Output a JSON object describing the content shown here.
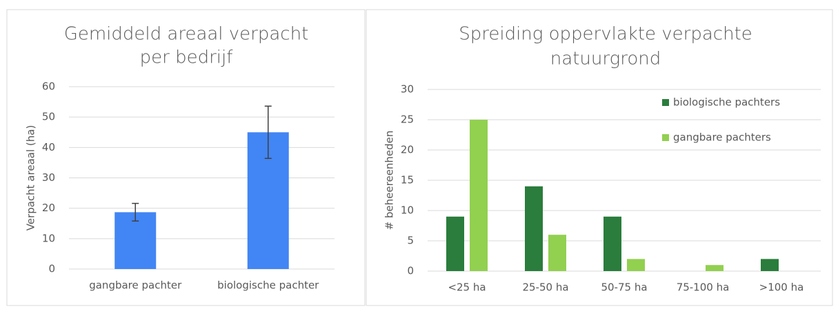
{
  "chart_data": [
    {
      "type": "bar",
      "title": [
        "Gemiddeld areaal verpacht",
        "per bedrijf"
      ],
      "y_label": "Verpacht areaal (ha)",
      "categories": [
        "gangbare pachter",
        "biologische pachter"
      ],
      "values": [
        18.7,
        45
      ],
      "errors": [
        2.9,
        8.6
      ],
      "color": "#4285f4",
      "ylim": [
        0,
        60
      ],
      "yticks": [
        0,
        10,
        20,
        30,
        40,
        50,
        60
      ],
      "grid": true
    },
    {
      "type": "grouped_bar",
      "title": [
        "Spreiding oppervlakte verpachte",
        "natuurgrond"
      ],
      "y_label": "# beheereenheden",
      "categories": [
        "<25 ha",
        "25-50 ha",
        "50-75 ha",
        "75-100 ha",
        ">100 ha"
      ],
      "series": [
        {
          "name": "biologische pachters",
          "color": "#2a7d3c",
          "values": [
            9,
            14,
            9,
            0,
            2
          ]
        },
        {
          "name": "gangbare pachters",
          "color": "#92d050",
          "values": [
            25,
            6,
            2,
            1,
            0
          ]
        }
      ],
      "ylim": [
        0,
        30
      ],
      "yticks": [
        0,
        5,
        10,
        15,
        20,
        25,
        30
      ],
      "grid": true,
      "legend": "upper right"
    }
  ]
}
